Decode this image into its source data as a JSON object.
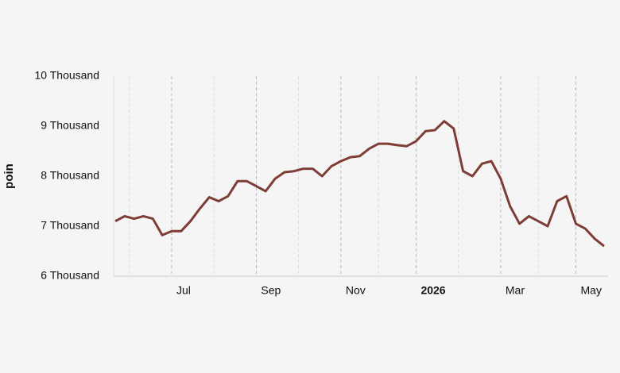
{
  "chart_data": {
    "type": "line",
    "y_label": "poin",
    "categories": [
      null,
      null,
      null,
      null,
      null,
      null,
      "Jul",
      null,
      null,
      null,
      null,
      null,
      null,
      null,
      null,
      "Sep",
      null,
      null,
      null,
      null,
      null,
      null,
      null,
      null,
      "Nov",
      null,
      null,
      null,
      null,
      null,
      null,
      null,
      "2026",
      null,
      null,
      null,
      null,
      null,
      null,
      null,
      null,
      "Mar",
      null,
      null,
      null,
      null,
      null,
      null,
      null,
      "May",
      null,
      null,
      null
    ],
    "series": [
      {
        "name": "poin",
        "color": "#7e3d35",
        "values": [
          7100,
          7200,
          7150,
          7200,
          7150,
          6820,
          6900,
          6900,
          7100,
          7350,
          7580,
          7500,
          7600,
          7900,
          7900,
          7800,
          7700,
          7950,
          8080,
          8100,
          8150,
          8150,
          8000,
          8200,
          8300,
          8380,
          8400,
          8550,
          8650,
          8650,
          8620,
          8600,
          8700,
          8900,
          8920,
          9100,
          8950,
          8100,
          8000,
          8250,
          8300,
          7950,
          7400,
          7050,
          7200,
          7100,
          7000,
          7500,
          7600,
          7050,
          6950,
          6750,
          6600
        ]
      }
    ],
    "ylim": [
      6000,
      10000
    ],
    "yticks": [
      {
        "value": 6000,
        "label": "6 Thousand"
      },
      {
        "value": 7000,
        "label": "7 Thousand"
      },
      {
        "value": 8000,
        "label": "8 Thousand"
      },
      {
        "value": 9000,
        "label": "9 Thousand"
      },
      {
        "value": 10000,
        "label": "10 Thousand"
      }
    ],
    "grid": true
  }
}
